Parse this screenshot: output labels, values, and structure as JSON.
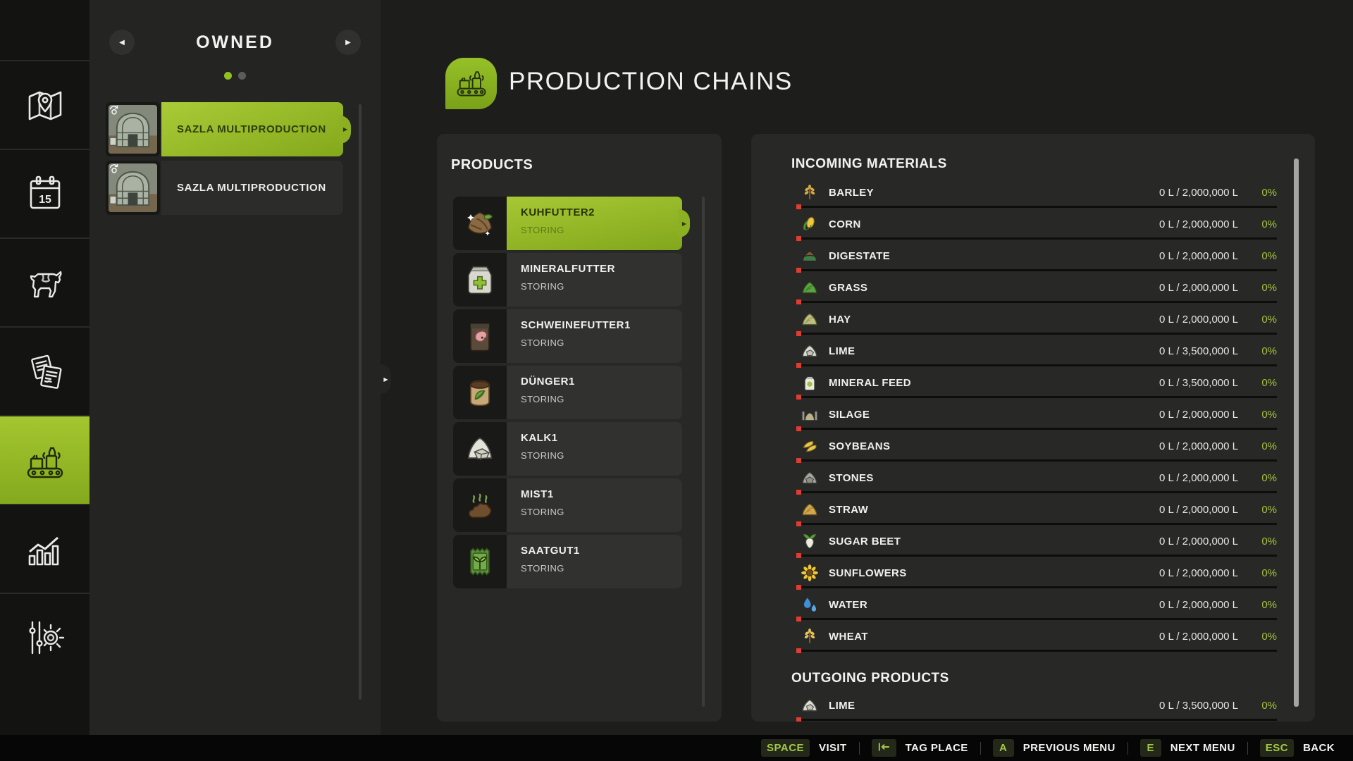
{
  "sidebar": {
    "items": [
      {
        "id": "map",
        "icon": "map-icon",
        "active": false
      },
      {
        "id": "calendar",
        "icon": "calendar-icon",
        "active": false,
        "day": "15"
      },
      {
        "id": "animals",
        "icon": "animals-icon",
        "active": false
      },
      {
        "id": "contracts",
        "icon": "contracts-icon",
        "active": false
      },
      {
        "id": "production",
        "icon": "production-icon",
        "active": true
      },
      {
        "id": "statistics",
        "icon": "statistics-icon",
        "active": false
      },
      {
        "id": "settings",
        "icon": "settings-icon",
        "active": false
      }
    ]
  },
  "owned_panel": {
    "title": "OWNED",
    "prev_arrow": "◀",
    "next_arrow": "▶",
    "handle_arrow": "▶",
    "pager": [
      {
        "state": "active"
      },
      {
        "state": "inactive"
      }
    ],
    "items": [
      {
        "label": "SAZLA MULTIPRODUCTION",
        "selected": true,
        "thumb": "building-thumbnail",
        "overlay": "rotate-view-icon",
        "arrow": "▶"
      },
      {
        "label": "SAZLA MULTIPRODUCTION",
        "selected": false,
        "thumb": "building-thumbnail",
        "overlay": "rotate-view-icon",
        "arrow": ""
      }
    ]
  },
  "header": {
    "title": "PRODUCTION CHAINS",
    "badge_icon": "production-icon"
  },
  "products_panel": {
    "title": "PRODUCTS",
    "items": [
      {
        "name": "KUHFUTTER2",
        "status": "STORING",
        "icon": "cow-feed-icon",
        "selected": true,
        "arrow": "▶"
      },
      {
        "name": "MINERALFUTTER",
        "status": "STORING",
        "icon": "mineral-feed-sack-icon",
        "selected": false,
        "arrow": ""
      },
      {
        "name": "SCHWEINEFUTTER1",
        "status": "STORING",
        "icon": "pig-feed-icon",
        "selected": false,
        "arrow": ""
      },
      {
        "name": "DÜNGER1",
        "status": "STORING",
        "icon": "fertilizer-icon",
        "selected": false,
        "arrow": ""
      },
      {
        "name": "KALK1",
        "status": "STORING",
        "icon": "lime-pile-icon",
        "selected": false,
        "arrow": ""
      },
      {
        "name": "MIST1",
        "status": "STORING",
        "icon": "manure-icon",
        "selected": false,
        "arrow": ""
      },
      {
        "name": "SAATGUT1",
        "status": "STORING",
        "icon": "seed-packet-icon",
        "selected": false,
        "arrow": ""
      }
    ]
  },
  "materials_panel": {
    "incoming_title": "INCOMING MATERIALS",
    "incoming": [
      {
        "name": "BARLEY",
        "icon": "barley-icon",
        "value": "0 L / 2,000,000 L",
        "percent": "0%"
      },
      {
        "name": "CORN",
        "icon": "corn-icon",
        "value": "0 L / 2,000,000 L",
        "percent": "0%"
      },
      {
        "name": "DIGESTATE",
        "icon": "digestate-icon",
        "value": "0 L / 2,000,000 L",
        "percent": "0%"
      },
      {
        "name": "GRASS",
        "icon": "grass-icon",
        "value": "0 L / 2,000,000 L",
        "percent": "0%"
      },
      {
        "name": "HAY",
        "icon": "hay-icon",
        "value": "0 L / 2,000,000 L",
        "percent": "0%"
      },
      {
        "name": "LIME",
        "icon": "lime-icon",
        "value": "0 L / 3,500,000 L",
        "percent": "0%"
      },
      {
        "name": "MINERAL FEED",
        "icon": "mineral-feed-icon",
        "value": "0 L / 3,500,000 L",
        "percent": "0%"
      },
      {
        "name": "SILAGE",
        "icon": "silage-icon",
        "value": "0 L / 2,000,000 L",
        "percent": "0%"
      },
      {
        "name": "SOYBEANS",
        "icon": "soybeans-icon",
        "value": "0 L / 2,000,000 L",
        "percent": "0%"
      },
      {
        "name": "STONES",
        "icon": "stones-icon",
        "value": "0 L / 2,000,000 L",
        "percent": "0%"
      },
      {
        "name": "STRAW",
        "icon": "straw-icon",
        "value": "0 L / 2,000,000 L",
        "percent": "0%"
      },
      {
        "name": "SUGAR BEET",
        "icon": "sugar-beet-icon",
        "value": "0 L / 2,000,000 L",
        "percent": "0%"
      },
      {
        "name": "SUNFLOWERS",
        "icon": "sunflowers-icon",
        "value": "0 L / 2,000,000 L",
        "percent": "0%"
      },
      {
        "name": "WATER",
        "icon": "water-icon",
        "value": "0 L / 2,000,000 L",
        "percent": "0%"
      },
      {
        "name": "WHEAT",
        "icon": "wheat-icon",
        "value": "0 L / 2,000,000 L",
        "percent": "0%"
      }
    ],
    "outgoing_title": "OUTGOING PRODUCTS",
    "outgoing": [
      {
        "name": "LIME",
        "icon": "lime-icon",
        "value": "0 L / 3,500,000 L",
        "percent": "0%"
      }
    ]
  },
  "bottom_bar": {
    "actions": [
      {
        "key": "SPACE",
        "label": "VISIT",
        "key_icon": ""
      },
      {
        "key": "",
        "label": "TAG PLACE",
        "key_icon": "tab-left-icon"
      },
      {
        "key": "A",
        "label": "PREVIOUS MENU",
        "key_icon": ""
      },
      {
        "key": "E",
        "label": "NEXT MENU",
        "key_icon": ""
      },
      {
        "key": "ESC",
        "label": "BACK",
        "key_icon": ""
      }
    ]
  },
  "colors": {
    "accent": "#8fc31f",
    "percent_green": "#a2c23b",
    "marker_red": "#e23b30"
  }
}
